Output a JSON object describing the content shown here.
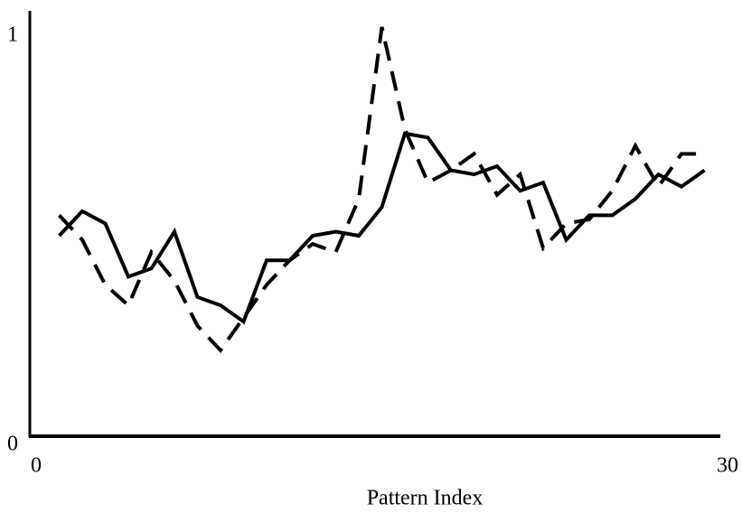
{
  "chart_data": {
    "type": "line",
    "x_label": "Pattern Index",
    "x": [
      1,
      2,
      3,
      4,
      5,
      6,
      7,
      8,
      9,
      10,
      11,
      12,
      13,
      14,
      15,
      16,
      17,
      18,
      19,
      20,
      21,
      22,
      23,
      24,
      25,
      26,
      27,
      28,
      29
    ],
    "series": [
      {
        "color": "#000000",
        "style": "solid",
        "values": [
          0.49,
          0.55,
          0.52,
          0.39,
          0.41,
          0.5,
          0.34,
          0.32,
          0.28,
          0.43,
          0.43,
          0.49,
          0.5,
          0.49,
          0.56,
          0.74,
          0.73,
          0.65,
          0.64,
          0.66,
          0.6,
          0.62,
          0.48,
          0.54,
          0.54,
          0.58,
          0.64,
          0.61,
          0.65
        ]
      },
      {
        "color": "#000000",
        "style": "dashed",
        "values": [
          0.54,
          0.48,
          0.37,
          0.32,
          0.45,
          0.38,
          0.27,
          0.21,
          0.29,
          0.37,
          0.43,
          0.47,
          0.45,
          0.58,
          1.0,
          0.75,
          0.62,
          0.65,
          0.69,
          0.59,
          0.64,
          0.46,
          0.52,
          0.53,
          0.6,
          0.71,
          0.61,
          0.69,
          0.69
        ]
      }
    ],
    "xlim": [
      0,
      30
    ],
    "xticks": [
      0,
      30
    ],
    "ylim": [
      0,
      1
    ],
    "yticks": [
      0,
      1
    ],
    "grid": false
  }
}
